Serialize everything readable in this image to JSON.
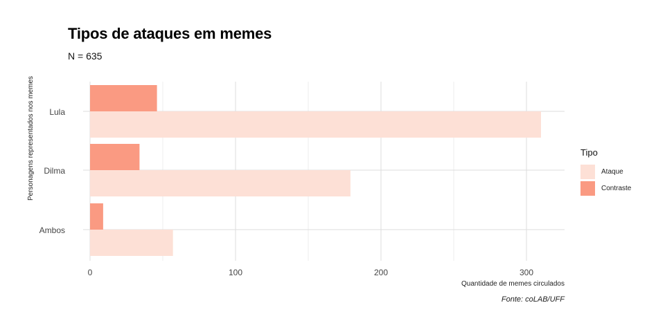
{
  "title": "Tipos de ataques em memes",
  "subtitle": "N = 635",
  "caption": "Fonte: coLAB/UFF",
  "legend": {
    "title": "Tipo",
    "items": [
      {
        "label": "Ataque",
        "color": "#fde0d6"
      },
      {
        "label": "Contraste",
        "color": "#fa9a82"
      }
    ]
  },
  "chart_data": {
    "type": "bar",
    "orientation": "horizontal",
    "categories": [
      "Lula",
      "Dilma",
      "Ambos"
    ],
    "series": [
      {
        "name": "Ataque",
        "values": [
          310,
          179,
          57
        ],
        "color": "#fde0d6"
      },
      {
        "name": "Contraste",
        "values": [
          46,
          34,
          9
        ],
        "color": "#fa9a82"
      }
    ],
    "xlabel": "Quantidade de memes circulados",
    "ylabel": "Personagens representados nos memes",
    "xlim": [
      0,
      325
    ],
    "xticks": [
      0,
      100,
      200,
      300
    ],
    "grid": true,
    "legend_position": "right"
  }
}
